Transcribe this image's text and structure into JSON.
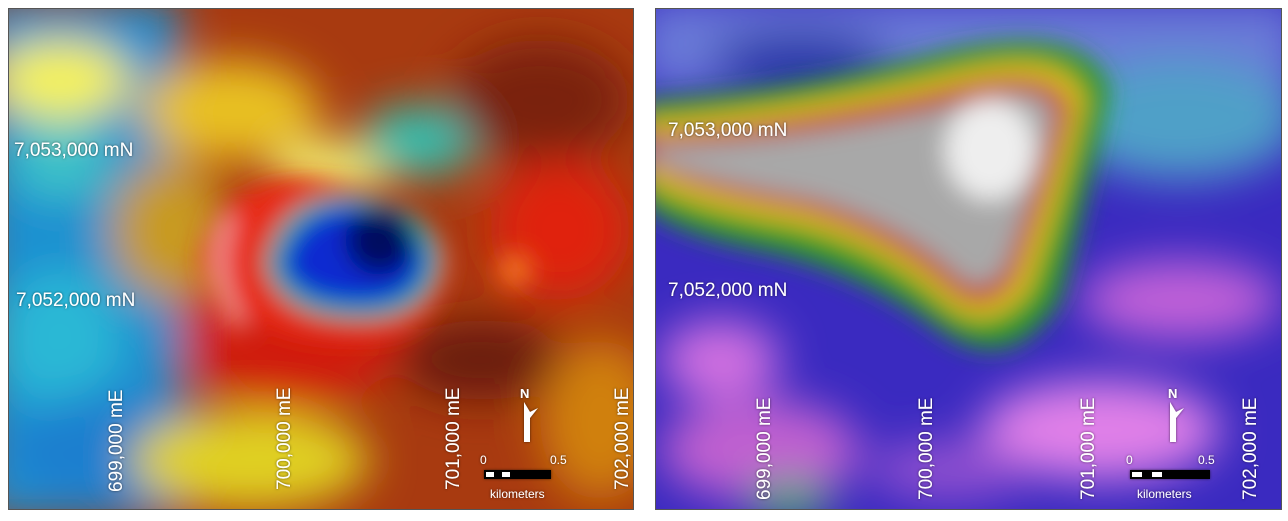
{
  "panels": [
    {
      "northing_labels": [
        "7,053,000 mN",
        "7,052,000 mN"
      ],
      "easting_labels": [
        "699,000 mE",
        "700,000 mE",
        "701,000 mE",
        "702,000 mE"
      ],
      "scale": {
        "min": "0",
        "max": "0.5",
        "unit": "kilometers"
      },
      "north": "N"
    },
    {
      "northing_labels": [
        "7,053,000 mN",
        "7,052,000 mN"
      ],
      "easting_labels": [
        "699,000 mE",
        "700,000 mE",
        "701,000 mE",
        "702,000 mE"
      ],
      "scale": {
        "min": "0",
        "max": "0.5",
        "unit": "kilometers"
      },
      "north": "N"
    }
  ]
}
